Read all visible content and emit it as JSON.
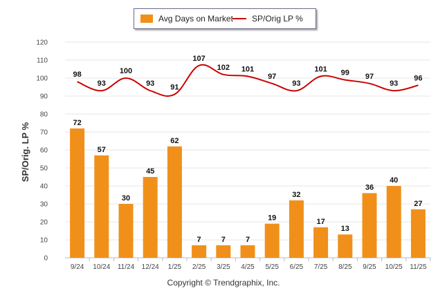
{
  "chart_data": {
    "type": "bar",
    "categories": [
      "9/24",
      "10/24",
      "11/24",
      "12/24",
      "1/25",
      "2/25",
      "3/25",
      "4/25",
      "5/25",
      "6/25",
      "7/25",
      "8/25",
      "9/25",
      "10/25",
      "11/25"
    ],
    "series": [
      {
        "name": "Avg Days on Market",
        "type": "bar",
        "color": "#f0901a",
        "values": [
          72,
          57,
          30,
          45,
          62,
          7,
          7,
          7,
          19,
          32,
          17,
          13,
          36,
          40,
          27
        ]
      },
      {
        "name": "SP/Orig LP %",
        "type": "line",
        "color": "#cc0000",
        "values": [
          98,
          93,
          100,
          93,
          91,
          107,
          102,
          101,
          97,
          93,
          101,
          99,
          97,
          93,
          96
        ]
      }
    ],
    "ylabel": "SP/Orig. LP %",
    "ylim": [
      0,
      120
    ],
    "yticks": [
      "0",
      "10",
      "20",
      "30",
      "40",
      "50",
      "60",
      "70",
      "80",
      "90",
      "100",
      "110",
      "120"
    ],
    "legend_position": "top-center",
    "grid": true
  },
  "legend": {
    "bar_label": "Avg Days on Market",
    "line_label": "SP/Orig LP %"
  },
  "footer": {
    "copyright": "Copyright © Trendgraphix, Inc."
  }
}
